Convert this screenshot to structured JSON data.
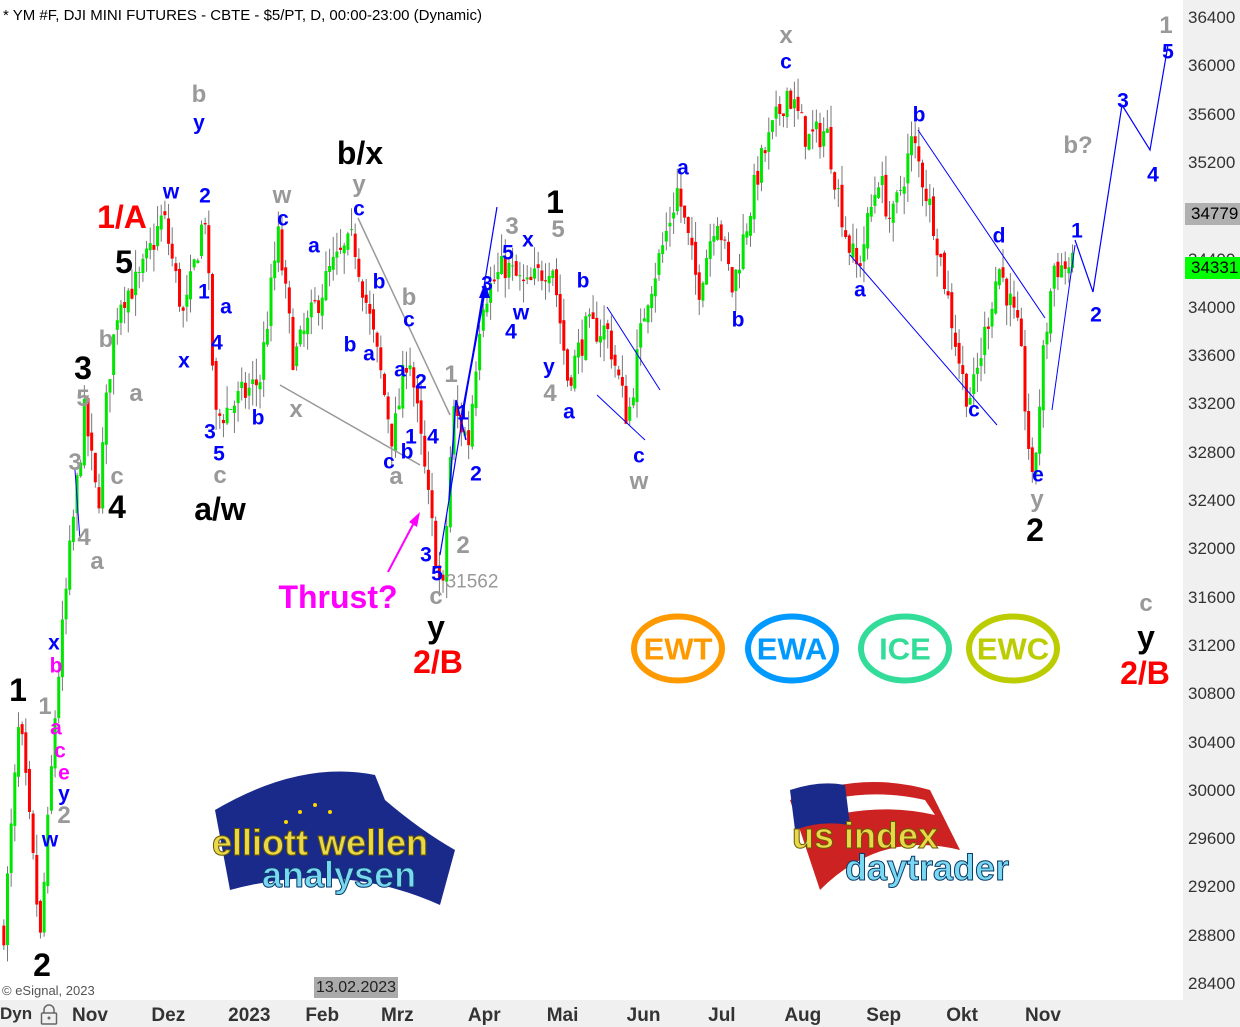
{
  "header": {
    "title": "* YM #F, DJI MINI FUTURES - CBTE - $5/PT, D, 00:00-23:00 (Dynamic)"
  },
  "footer": {
    "copyright": "© eSignal, 2023",
    "dyn_label": "Dyn",
    "hover_date": "13.02.2023"
  },
  "colors": {
    "up": "#00e600",
    "down": "#ff0000",
    "wick": "#777777",
    "wave_blue": "#0000ff",
    "wave_gray": "#999999",
    "wave_red": "#ff0000",
    "wave_black": "#000000",
    "wave_magenta": "#ff00ff"
  },
  "chart_data": {
    "type": "candlestick",
    "symbol": "YM #F",
    "interval": "D",
    "ylim": [
      28400,
      36400
    ],
    "y_ticks": [
      "36400",
      "36000",
      "35600",
      "35200",
      "34800",
      "34400",
      "34000",
      "33600",
      "33200",
      "32800",
      "32400",
      "32000",
      "31600",
      "31200",
      "30800",
      "30400",
      "30000",
      "29600",
      "29200",
      "28800",
      "28400"
    ],
    "x_ticks": [
      {
        "label": "Nov",
        "date": "2022-11-01"
      },
      {
        "label": "Dez",
        "date": "2022-12-01"
      },
      {
        "label": "2023",
        "date": "2023-01-01"
      },
      {
        "label": "Feb",
        "date": "2023-02-01"
      },
      {
        "label": "Mrz",
        "date": "2023-03-01"
      },
      {
        "label": "Apr",
        "date": "2023-04-01"
      },
      {
        "label": "Mai",
        "date": "2023-05-01"
      },
      {
        "label": "Jun",
        "date": "2023-06-01"
      },
      {
        "label": "Jul",
        "date": "2023-07-01"
      },
      {
        "label": "Aug",
        "date": "2023-08-01"
      },
      {
        "label": "Sep",
        "date": "2023-09-01"
      },
      {
        "label": "Okt",
        "date": "2023-10-01"
      },
      {
        "label": "Nov",
        "date": "2023-11-01"
      }
    ],
    "price_tags": [
      {
        "value": "34779",
        "color": "#b0b0b0"
      },
      {
        "value": "34331",
        "color": "#00ff00"
      }
    ],
    "swing_pivots": [
      [
        "2022-09-29",
        28850
      ],
      [
        "2022-10-05",
        30590
      ],
      [
        "2022-10-13",
        28760
      ],
      [
        "2022-10-19",
        30750
      ],
      [
        "2022-10-24",
        31910
      ],
      [
        "2022-10-30",
        33150
      ],
      [
        "2022-11-04",
        32330
      ],
      [
        "2022-11-08",
        33400
      ],
      [
        "2022-11-12",
        34070
      ],
      [
        "2022-11-20",
        34230
      ],
      [
        "2022-11-29",
        34770
      ],
      [
        "2022-12-07",
        33900
      ],
      [
        "2022-12-15",
        34810
      ],
      [
        "2022-12-19",
        33070
      ],
      [
        "2023-01-05",
        33400
      ],
      [
        "2023-01-12",
        34600
      ],
      [
        "2023-01-18",
        33570
      ],
      [
        "2023-02-01",
        34310
      ],
      [
        "2023-02-10",
        34560
      ],
      [
        "2023-02-20",
        33490
      ],
      [
        "2023-02-25",
        32900
      ],
      [
        "2023-03-03",
        33690
      ],
      [
        "2023-03-11",
        32330
      ],
      [
        "2023-03-16",
        31562
      ],
      [
        "2023-03-20",
        33150
      ],
      [
        "2023-03-26",
        32900
      ],
      [
        "2023-03-31",
        34070
      ],
      [
        "2023-04-09",
        34350
      ],
      [
        "2023-04-17",
        34150
      ],
      [
        "2023-04-27",
        34400
      ],
      [
        "2023-05-03",
        33400
      ],
      [
        "2023-05-10",
        33820
      ],
      [
        "2023-05-18",
        33820
      ],
      [
        "2023-05-26",
        33070
      ],
      [
        "2023-06-02",
        34070
      ],
      [
        "2023-06-08",
        34480
      ],
      [
        "2023-06-14",
        34980
      ],
      [
        "2023-06-22",
        34150
      ],
      [
        "2023-06-29",
        34810
      ],
      [
        "2023-07-05",
        34150
      ],
      [
        "2023-07-15",
        35140
      ],
      [
        "2023-07-26",
        35800
      ],
      [
        "2023-08-03",
        35390
      ],
      [
        "2023-08-10",
        35470
      ],
      [
        "2023-08-18",
        34560
      ],
      [
        "2023-08-22",
        34310
      ],
      [
        "2023-08-30",
        35100
      ],
      [
        "2023-09-04",
        34690
      ],
      [
        "2023-09-12",
        35390
      ],
      [
        "2023-09-20",
        34730
      ],
      [
        "2023-10-02",
        33320
      ],
      [
        "2023-10-05",
        33280
      ],
      [
        "2023-10-15",
        34350
      ],
      [
        "2023-10-19",
        34070
      ],
      [
        "2023-10-23",
        33730
      ],
      [
        "2023-10-28",
        32490
      ],
      [
        "2023-11-01",
        33570
      ],
      [
        "2023-11-05",
        34350
      ],
      [
        "2023-11-13",
        34331
      ]
    ],
    "low_annotation": "31562"
  },
  "wave_labels": [
    {
      "t": "1",
      "c": "black"
    },
    {
      "t": "2",
      "c": "black"
    },
    {
      "t": "3",
      "c": "black"
    },
    {
      "t": "4",
      "c": "black"
    },
    {
      "t": "5",
      "c": "black"
    },
    {
      "t": "a/w",
      "c": "black"
    },
    {
      "t": "b/x",
      "c": "black"
    },
    {
      "t": "y",
      "c": "black"
    },
    {
      "t": "1",
      "c": "black"
    },
    {
      "t": "2",
      "c": "black"
    },
    {
      "t": "y",
      "c": "black"
    },
    {
      "t": "1/A",
      "c": "red"
    },
    {
      "t": "2/B",
      "c": "red"
    },
    {
      "t": "2/B",
      "c": "red"
    },
    {
      "t": "Thrust?",
      "c": "magenta"
    },
    {
      "t": "b",
      "c": "gray"
    },
    {
      "t": "w",
      "c": "gray"
    },
    {
      "t": "y",
      "c": "gray"
    },
    {
      "t": "b",
      "c": "gray"
    },
    {
      "t": "x",
      "c": "gray"
    },
    {
      "t": "a",
      "c": "gray"
    },
    {
      "t": "1",
      "c": "gray"
    },
    {
      "t": "2",
      "c": "gray"
    },
    {
      "t": "c",
      "c": "gray"
    },
    {
      "t": "3",
      "c": "gray"
    },
    {
      "t": "5",
      "c": "gray"
    },
    {
      "t": "4",
      "c": "gray"
    },
    {
      "t": "w",
      "c": "gray"
    },
    {
      "t": "x",
      "c": "gray"
    },
    {
      "t": "b?",
      "c": "gray"
    },
    {
      "t": "1",
      "c": "gray"
    },
    {
      "t": "c",
      "c": "gray"
    },
    {
      "t": "y",
      "c": "gray"
    },
    {
      "t": "5",
      "c": "gray"
    },
    {
      "t": "a",
      "c": "gray"
    },
    {
      "t": "b",
      "c": "gray"
    },
    {
      "t": "c",
      "c": "gray"
    },
    {
      "t": "3",
      "c": "gray"
    },
    {
      "t": "4",
      "c": "gray"
    },
    {
      "t": "a",
      "c": "gray"
    },
    {
      "t": "1",
      "c": "gray"
    },
    {
      "t": "2",
      "c": "gray"
    },
    {
      "t": "c",
      "c": "gray"
    },
    {
      "t": "y",
      "c": "blue"
    },
    {
      "t": "w",
      "c": "blue"
    },
    {
      "t": "2",
      "c": "blue"
    },
    {
      "t": "1",
      "c": "blue"
    },
    {
      "t": "a",
      "c": "blue"
    },
    {
      "t": "4",
      "c": "blue"
    },
    {
      "t": "x",
      "c": "blue"
    },
    {
      "t": "3",
      "c": "blue"
    },
    {
      "t": "5",
      "c": "blue"
    },
    {
      "t": "b",
      "c": "blue"
    },
    {
      "t": "c",
      "c": "blue"
    },
    {
      "t": "a",
      "c": "blue"
    },
    {
      "t": "c",
      "c": "blue"
    },
    {
      "t": "b",
      "c": "blue"
    },
    {
      "t": "b",
      "c": "blue"
    },
    {
      "t": "a",
      "c": "blue"
    },
    {
      "t": "c",
      "c": "blue"
    },
    {
      "t": "a",
      "c": "blue"
    },
    {
      "t": "2",
      "c": "blue"
    },
    {
      "t": "1",
      "c": "blue"
    },
    {
      "t": "4",
      "c": "blue"
    },
    {
      "t": "b",
      "c": "blue"
    },
    {
      "t": "c",
      "c": "blue"
    },
    {
      "t": "3",
      "c": "blue"
    },
    {
      "t": "5",
      "c": "blue"
    },
    {
      "t": "1",
      "c": "blue"
    },
    {
      "t": "2",
      "c": "blue"
    },
    {
      "t": "3",
      "c": "blue"
    },
    {
      "t": "5",
      "c": "blue"
    },
    {
      "t": "x",
      "c": "blue"
    },
    {
      "t": "w",
      "c": "blue"
    },
    {
      "t": "4",
      "c": "blue"
    },
    {
      "t": "y",
      "c": "blue"
    },
    {
      "t": "a",
      "c": "blue"
    },
    {
      "t": "b",
      "c": "blue"
    },
    {
      "t": "c",
      "c": "blue"
    },
    {
      "t": "a",
      "c": "blue"
    },
    {
      "t": "b",
      "c": "blue"
    },
    {
      "t": "c",
      "c": "blue"
    },
    {
      "t": "b",
      "c": "blue"
    },
    {
      "t": "a",
      "c": "blue"
    },
    {
      "t": "c",
      "c": "blue"
    },
    {
      "t": "d",
      "c": "blue"
    },
    {
      "t": "e",
      "c": "blue"
    },
    {
      "t": "1",
      "c": "blue"
    },
    {
      "t": "2",
      "c": "blue"
    },
    {
      "t": "3",
      "c": "blue"
    },
    {
      "t": "4",
      "c": "blue"
    },
    {
      "t": "5",
      "c": "blue"
    },
    {
      "t": "x",
      "c": "blue"
    },
    {
      "t": "y",
      "c": "blue"
    },
    {
      "t": "w",
      "c": "blue"
    },
    {
      "t": "b",
      "c": "magenta"
    },
    {
      "t": "a",
      "c": "magenta"
    },
    {
      "t": "c",
      "c": "magenta"
    },
    {
      "t": "e",
      "c": "magenta"
    }
  ],
  "badges": [
    {
      "text": "EWT",
      "color": "#ff9900"
    },
    {
      "text": "EWA",
      "color": "#0099ff"
    },
    {
      "text": "ICE",
      "color": "#33dd99"
    },
    {
      "text": "EWC",
      "color": "#bbcc00"
    }
  ],
  "logos": {
    "left": {
      "line1": "elliott wellen",
      "line2": "analysen"
    },
    "right": {
      "line1": "us index",
      "line2": "daytrader"
    }
  }
}
